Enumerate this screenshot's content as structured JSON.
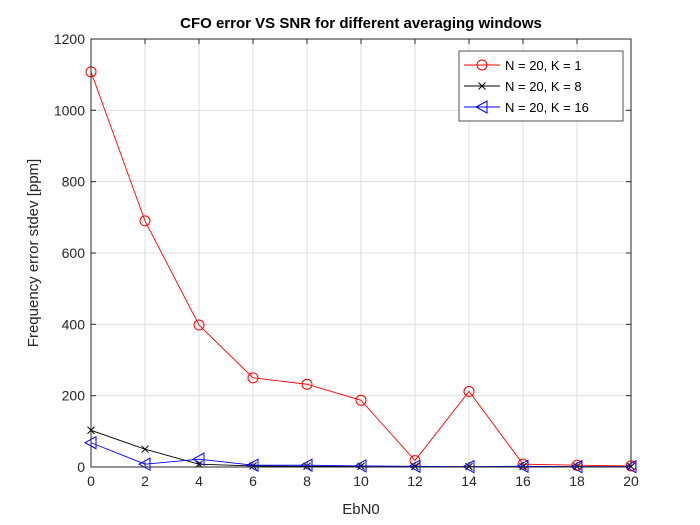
{
  "chart_data": {
    "type": "line",
    "title": "CFO error VS SNR for different averaging windows",
    "xlabel": "EbN0",
    "ylabel": "Frequency error stdev [ppm]",
    "xlim": [
      0,
      20
    ],
    "ylim": [
      0,
      1200
    ],
    "xticks": [
      0,
      2,
      4,
      6,
      8,
      10,
      12,
      14,
      16,
      18,
      20
    ],
    "yticks": [
      0,
      200,
      400,
      600,
      800,
      1000,
      1200
    ],
    "grid": true,
    "legend_position": "top-right",
    "x": [
      0,
      2,
      4,
      6,
      8,
      10,
      12,
      14,
      16,
      18,
      20
    ],
    "series": [
      {
        "name": "N = 20, K = 1",
        "color": "#ff0000",
        "marker": "circle",
        "values": [
          1108,
          690,
          398,
          250,
          232,
          187,
          18,
          212,
          8,
          5,
          3
        ]
      },
      {
        "name": "N = 20, K = 8",
        "color": "#000000",
        "marker": "x",
        "values": [
          103,
          50,
          8,
          3,
          2,
          2,
          1,
          1,
          1,
          1,
          1
        ]
      },
      {
        "name": "N = 20, K = 16",
        "color": "#0000ff",
        "marker": "triangle-left",
        "values": [
          68,
          8,
          22,
          5,
          5,
          3,
          2,
          1,
          2,
          1,
          1
        ]
      }
    ]
  }
}
